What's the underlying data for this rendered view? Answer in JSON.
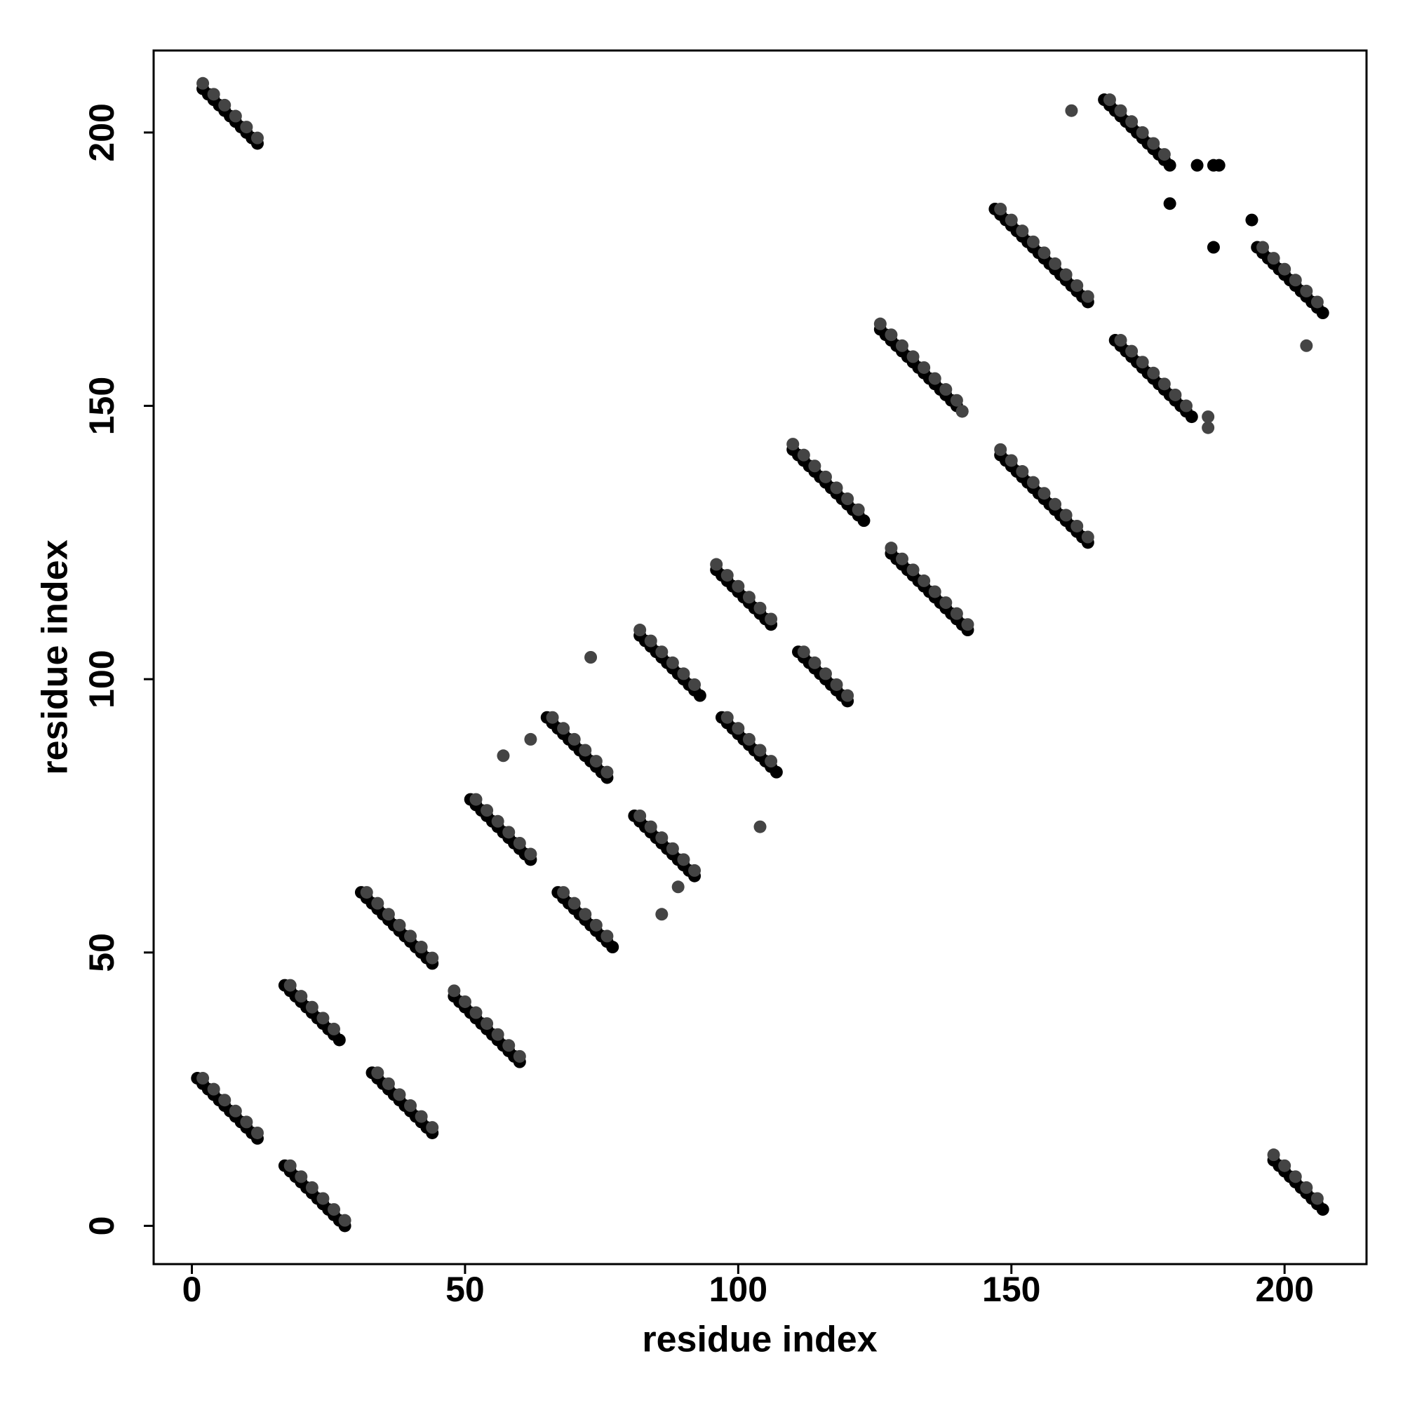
{
  "chart_data": {
    "type": "scatter",
    "x_label": "residue index",
    "y_label": "residue index",
    "xlim": [
      -7,
      215
    ],
    "ylim": [
      -7,
      215
    ],
    "xticks": [
      0,
      50,
      100,
      150,
      200
    ],
    "yticks": [
      0,
      50,
      100,
      150,
      200
    ],
    "series": [
      {
        "color": "#000000",
        "x": [
          1,
          2,
          3,
          4,
          5,
          6,
          7,
          8,
          9,
          10,
          11,
          12,
          2,
          3,
          4,
          5,
          6,
          7,
          8,
          9,
          10,
          11,
          12,
          17,
          18,
          19,
          20,
          21,
          22,
          23,
          24,
          25,
          26,
          27,
          28,
          17,
          18,
          19,
          20,
          21,
          22,
          23,
          24,
          25,
          26,
          27,
          31,
          32,
          33,
          34,
          35,
          36,
          37,
          38,
          39,
          40,
          41,
          42,
          43,
          44,
          33,
          34,
          35,
          36,
          37,
          38,
          39,
          40,
          41,
          42,
          43,
          44,
          48,
          49,
          50,
          51,
          52,
          53,
          54,
          55,
          56,
          57,
          58,
          59,
          60,
          51,
          52,
          53,
          54,
          55,
          56,
          57,
          58,
          59,
          60,
          61,
          62,
          67,
          68,
          69,
          70,
          71,
          72,
          73,
          74,
          75,
          76,
          77,
          65,
          66,
          67,
          68,
          69,
          70,
          71,
          72,
          73,
          74,
          75,
          76,
          81,
          82,
          83,
          84,
          85,
          86,
          87,
          88,
          89,
          90,
          91,
          92,
          82,
          83,
          84,
          85,
          86,
          87,
          88,
          89,
          90,
          91,
          92,
          93,
          97,
          98,
          99,
          100,
          101,
          102,
          103,
          104,
          105,
          106,
          107,
          96,
          97,
          98,
          99,
          100,
          101,
          102,
          103,
          104,
          105,
          106,
          111,
          112,
          113,
          114,
          115,
          116,
          117,
          118,
          119,
          120,
          110,
          111,
          112,
          113,
          114,
          115,
          116,
          117,
          118,
          119,
          120,
          121,
          122,
          123,
          128,
          129,
          130,
          131,
          132,
          133,
          134,
          135,
          136,
          137,
          138,
          139,
          140,
          141,
          142,
          126,
          127,
          128,
          129,
          130,
          131,
          132,
          133,
          134,
          135,
          136,
          137,
          138,
          139,
          140,
          141,
          148,
          149,
          150,
          151,
          152,
          153,
          154,
          155,
          156,
          157,
          158,
          159,
          160,
          161,
          162,
          163,
          164,
          147,
          148,
          149,
          150,
          151,
          152,
          153,
          154,
          155,
          156,
          157,
          158,
          159,
          160,
          161,
          162,
          163,
          164,
          169,
          170,
          171,
          172,
          173,
          174,
          175,
          176,
          177,
          178,
          179,
          180,
          181,
          182,
          183,
          167,
          168,
          169,
          170,
          171,
          172,
          173,
          174,
          175,
          176,
          177,
          178,
          179,
          195,
          196,
          197,
          198,
          199,
          200,
          201,
          202,
          203,
          204,
          205,
          206,
          207,
          198,
          199,
          200,
          201,
          202,
          203,
          204,
          205,
          206,
          207,
          179,
          184,
          187,
          188,
          187,
          194
        ],
        "values": [
          27,
          26,
          25,
          24,
          23,
          22,
          21,
          20,
          19,
          18,
          17,
          16,
          208,
          207,
          206,
          205,
          204,
          203,
          202,
          201,
          200,
          199,
          198,
          11,
          10,
          9,
          8,
          7,
          6,
          5,
          4,
          3,
          2,
          1,
          0,
          44,
          43,
          42,
          41,
          40,
          39,
          38,
          37,
          36,
          35,
          34,
          61,
          60,
          59,
          58,
          57,
          56,
          55,
          54,
          53,
          52,
          51,
          50,
          49,
          48,
          28,
          27,
          26,
          25,
          24,
          23,
          22,
          21,
          20,
          19,
          18,
          17,
          42,
          41,
          40,
          39,
          38,
          37,
          36,
          35,
          34,
          33,
          32,
          31,
          30,
          78,
          77,
          76,
          75,
          74,
          73,
          72,
          71,
          70,
          69,
          68,
          67,
          61,
          60,
          59,
          58,
          57,
          56,
          55,
          54,
          53,
          52,
          51,
          93,
          92,
          91,
          90,
          89,
          88,
          87,
          86,
          85,
          84,
          83,
          82,
          75,
          74,
          73,
          72,
          71,
          70,
          69,
          68,
          67,
          66,
          65,
          64,
          108,
          107,
          106,
          105,
          104,
          103,
          102,
          101,
          100,
          99,
          98,
          97,
          93,
          92,
          91,
          90,
          89,
          88,
          87,
          86,
          85,
          84,
          83,
          120,
          119,
          118,
          117,
          116,
          115,
          114,
          113,
          112,
          111,
          110,
          105,
          104,
          103,
          102,
          101,
          100,
          99,
          98,
          97,
          96,
          142,
          141,
          140,
          139,
          138,
          137,
          136,
          135,
          134,
          133,
          132,
          131,
          130,
          129,
          123,
          122,
          121,
          120,
          119,
          118,
          117,
          116,
          115,
          114,
          113,
          112,
          111,
          110,
          109,
          164,
          163,
          162,
          161,
          160,
          159,
          158,
          157,
          156,
          155,
          154,
          153,
          152,
          151,
          150,
          149,
          141,
          140,
          139,
          138,
          137,
          136,
          135,
          134,
          133,
          132,
          131,
          130,
          129,
          128,
          127,
          126,
          125,
          186,
          185,
          184,
          183,
          182,
          181,
          180,
          179,
          178,
          177,
          176,
          175,
          174,
          173,
          172,
          171,
          170,
          169,
          162,
          161,
          160,
          159,
          158,
          157,
          156,
          155,
          154,
          153,
          152,
          151,
          150,
          149,
          148,
          206,
          205,
          204,
          203,
          202,
          201,
          200,
          199,
          198,
          197,
          196,
          195,
          194,
          179,
          178,
          177,
          176,
          175,
          174,
          173,
          172,
          171,
          170,
          169,
          168,
          167,
          12,
          11,
          10,
          9,
          8,
          7,
          6,
          5,
          4,
          3,
          187,
          194,
          194,
          194,
          179,
          184
        ]
      },
      {
        "color": "#444444",
        "x": [
          2,
          4,
          6,
          8,
          10,
          12,
          2,
          4,
          6,
          8,
          10,
          12,
          18,
          20,
          22,
          24,
          26,
          28,
          18,
          20,
          22,
          24,
          26,
          32,
          34,
          36,
          38,
          40,
          42,
          44,
          34,
          36,
          38,
          40,
          42,
          44,
          48,
          50,
          52,
          54,
          56,
          58,
          60,
          52,
          54,
          56,
          58,
          60,
          62,
          68,
          70,
          72,
          74,
          76,
          66,
          68,
          70,
          72,
          74,
          76,
          82,
          84,
          86,
          88,
          90,
          92,
          82,
          84,
          86,
          88,
          90,
          92,
          98,
          100,
          102,
          104,
          106,
          96,
          98,
          100,
          102,
          104,
          106,
          112,
          114,
          116,
          118,
          120,
          110,
          112,
          114,
          116,
          118,
          120,
          122,
          128,
          130,
          132,
          134,
          136,
          138,
          140,
          142,
          126,
          128,
          130,
          132,
          134,
          136,
          138,
          140,
          148,
          150,
          152,
          154,
          156,
          158,
          160,
          162,
          164,
          148,
          150,
          152,
          154,
          156,
          158,
          160,
          162,
          164,
          170,
          172,
          174,
          176,
          178,
          180,
          182,
          168,
          170,
          172,
          174,
          176,
          178,
          196,
          198,
          200,
          202,
          204,
          206,
          198,
          200,
          202,
          204,
          206,
          57,
          62,
          73,
          86,
          89,
          104,
          161,
          204,
          186,
          186,
          141
        ],
        "values": [
          27,
          25,
          23,
          21,
          19,
          17,
          209,
          207,
          205,
          203,
          201,
          199,
          11,
          9,
          7,
          5,
          3,
          1,
          44,
          42,
          40,
          38,
          36,
          61,
          59,
          57,
          55,
          53,
          51,
          49,
          28,
          26,
          24,
          22,
          20,
          18,
          43,
          41,
          39,
          37,
          35,
          33,
          31,
          78,
          76,
          74,
          72,
          70,
          68,
          61,
          59,
          57,
          55,
          53,
          93,
          91,
          89,
          87,
          85,
          83,
          75,
          73,
          71,
          69,
          67,
          65,
          109,
          107,
          105,
          103,
          101,
          99,
          93,
          91,
          89,
          87,
          85,
          121,
          119,
          117,
          115,
          113,
          111,
          105,
          103,
          101,
          99,
          97,
          143,
          141,
          139,
          137,
          135,
          133,
          131,
          124,
          122,
          120,
          118,
          116,
          114,
          112,
          110,
          165,
          163,
          161,
          159,
          157,
          155,
          153,
          151,
          142,
          140,
          138,
          136,
          134,
          132,
          130,
          128,
          126,
          186,
          184,
          182,
          180,
          178,
          176,
          174,
          172,
          170,
          162,
          160,
          158,
          156,
          154,
          152,
          150,
          206,
          204,
          202,
          200,
          198,
          196,
          179,
          177,
          175,
          173,
          171,
          169,
          13,
          11,
          9,
          7,
          5,
          86,
          89,
          104,
          57,
          62,
          73,
          204,
          161,
          148,
          146,
          149
        ]
      }
    ]
  }
}
